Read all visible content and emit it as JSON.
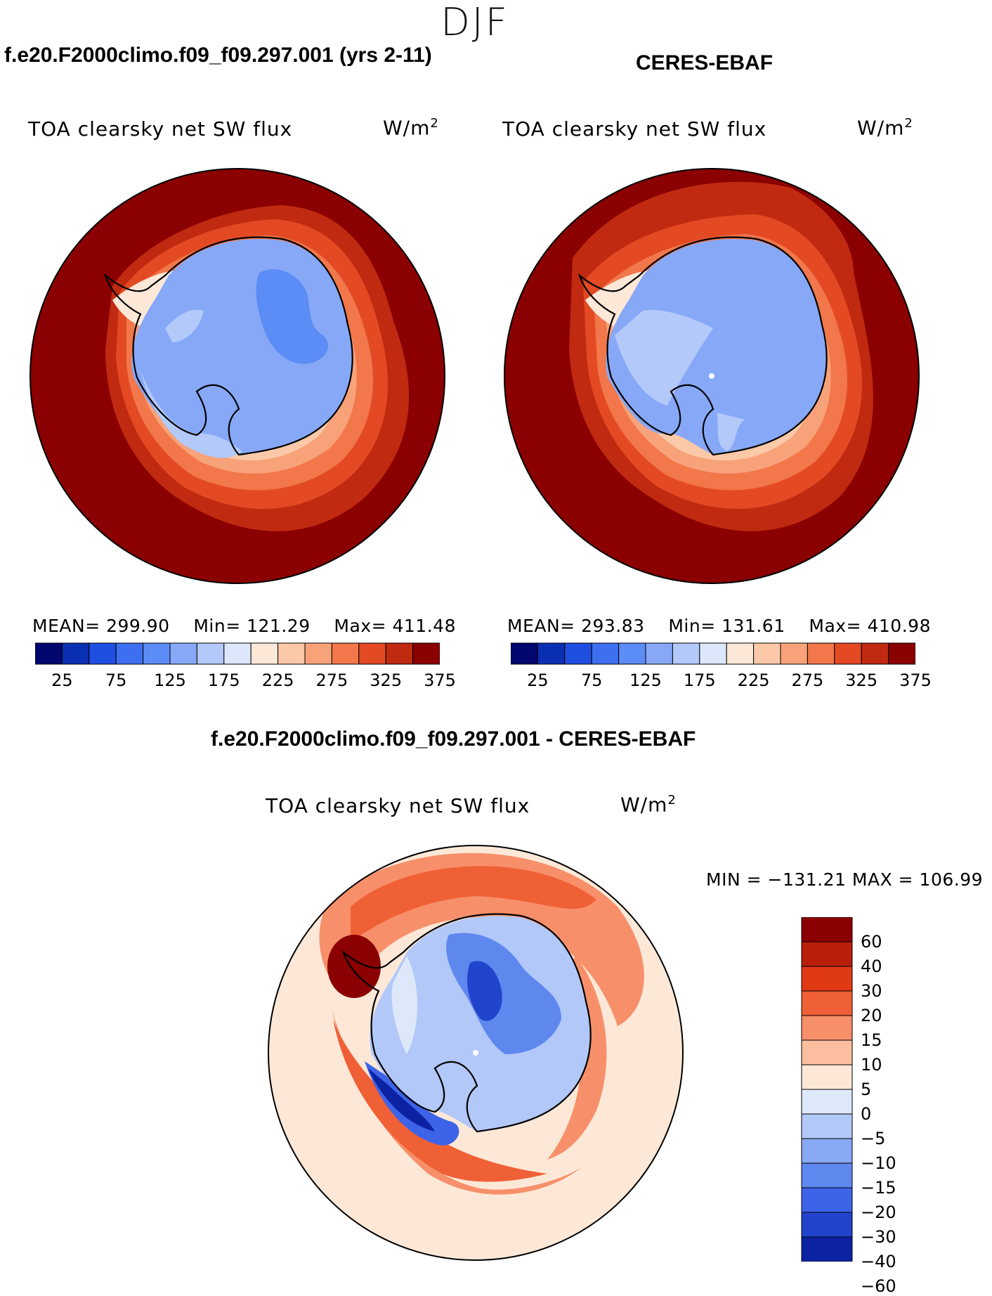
{
  "season": "DJF",
  "panels": [
    {
      "heading": "f.e20.F2000climo.f09_f09.297.001 (yrs 2-11)",
      "title": "TOA clearsky net SW flux",
      "units": "W/m",
      "units_exp": "2",
      "mean_label": "MEAN=",
      "mean": "299.90",
      "min_label": "Min=",
      "min": "121.29",
      "max_label": "Max=",
      "max": "411.48"
    },
    {
      "heading": "CERES-EBAF",
      "title": "TOA clearsky net SW flux",
      "units": "W/m",
      "units_exp": "2",
      "mean_label": "MEAN=",
      "mean": "293.83",
      "min_label": "Min=",
      "min": "131.61",
      "max_label": "Max=",
      "max": "410.98"
    }
  ],
  "diff": {
    "heading": "f.e20.F2000climo.f09_f09.297.001 - CERES-EBAF",
    "title": "TOA clearsky net SW flux",
    "units": "W/m",
    "units_exp": "2",
    "min_label": "MIN =",
    "min": "−131.21",
    "max_label": "MAX =",
    "max": "106.99"
  },
  "colorbar_main": {
    "colors": [
      "#02066f",
      "#0a2fb3",
      "#1f4fe0",
      "#3d6ff0",
      "#5c8cf5",
      "#86a8f7",
      "#b3c9fa",
      "#dce7fc",
      "#fde8d8",
      "#fbc8a8",
      "#f8a27a",
      "#f2774a",
      "#e34a24",
      "#c02a10",
      "#8b0000"
    ],
    "tick_labels": [
      "25",
      "75",
      "125",
      "175",
      "225",
      "275",
      "325",
      "375"
    ]
  },
  "colorbar_diff": {
    "colors": [
      "#8b0000",
      "#b81e0a",
      "#e03a14",
      "#f06036",
      "#f7906a",
      "#fbbe9e",
      "#fde8d8",
      "#dde9fb",
      "#b2c8f8",
      "#88a9f4",
      "#5f88ef",
      "#3d63e8",
      "#2244cc",
      "#0b23a3"
    ],
    "tick_labels": [
      "60",
      "40",
      "30",
      "20",
      "15",
      "10",
      "5",
      "0",
      "−5",
      "−10",
      "−15",
      "−20",
      "−30",
      "−40",
      "−60"
    ]
  },
  "icons": {
    "coastline": "antarctica-coastline-icon"
  }
}
